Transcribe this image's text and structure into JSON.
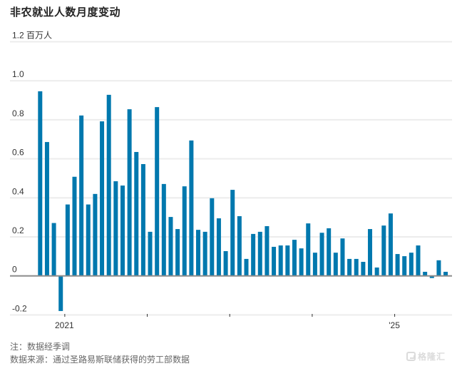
{
  "title": "非农就业人数月度变动",
  "footer": {
    "note": "注：数据经季调",
    "source": "数据来源：通过圣路易斯联储获得的劳工部数据"
  },
  "watermark": {
    "text": "格隆汇",
    "icon": "gelonghui-logo-icon"
  },
  "colors": {
    "bar": "#0078ae",
    "grid": "#ececec",
    "zero_line": "#8c8c8c",
    "text": "#333333"
  },
  "chart_data": {
    "type": "bar",
    "title": "非农就业人数月度变动",
    "ylabel": "百万人",
    "xlabel": "",
    "ylim": [
      -0.2,
      1.2
    ],
    "yticks": [
      {
        "value": 1.2,
        "label": "1.2 百万人"
      },
      {
        "value": 1.0,
        "label": "1.0"
      },
      {
        "value": 0.8,
        "label": "0.8"
      },
      {
        "value": 0.6,
        "label": "0.6"
      },
      {
        "value": 0.4,
        "label": "0.4"
      },
      {
        "value": 0.2,
        "label": "0.2"
      },
      {
        "value": 0,
        "label": "0"
      },
      {
        "value": -0.2,
        "label": "-0.2"
      }
    ],
    "xticks": [
      {
        "index": 4,
        "label": "2021"
      },
      {
        "index": 16,
        "label": ""
      },
      {
        "index": 28,
        "label": ""
      },
      {
        "index": 40,
        "label": ""
      },
      {
        "index": 52,
        "label": "'25"
      }
    ],
    "grid": true,
    "legend": null,
    "categories": [
      "2020-09",
      "2020-10",
      "2020-11",
      "2020-12",
      "2021-01",
      "2021-02",
      "2021-03",
      "2021-04",
      "2021-05",
      "2021-06",
      "2021-07",
      "2021-08",
      "2021-09",
      "2021-10",
      "2021-11",
      "2021-12",
      "2022-01",
      "2022-02",
      "2022-03",
      "2022-04",
      "2022-05",
      "2022-06",
      "2022-07",
      "2022-08",
      "2022-09",
      "2022-10",
      "2022-11",
      "2022-12",
      "2023-01",
      "2023-02",
      "2023-03",
      "2023-04",
      "2023-05",
      "2023-06",
      "2023-07",
      "2023-08",
      "2023-09",
      "2023-10",
      "2023-11",
      "2023-12",
      "2024-01",
      "2024-02",
      "2024-03",
      "2024-04",
      "2024-05",
      "2024-06",
      "2024-07",
      "2024-08",
      "2024-09",
      "2024-10",
      "2024-11",
      "2024-12",
      "2025-01",
      "2025-02",
      "2025-03",
      "2025-04",
      "2025-05",
      "2025-06",
      "2025-07",
      "2025-08"
    ],
    "values": [
      0.946,
      0.686,
      0.271,
      -0.18,
      0.366,
      0.508,
      0.822,
      0.366,
      0.42,
      0.792,
      0.928,
      0.485,
      0.463,
      0.854,
      0.635,
      0.573,
      0.226,
      0.865,
      0.471,
      0.302,
      0.24,
      0.459,
      0.694,
      0.236,
      0.226,
      0.398,
      0.295,
      0.127,
      0.441,
      0.306,
      0.087,
      0.215,
      0.226,
      0.255,
      0.149,
      0.156,
      0.156,
      0.185,
      0.141,
      0.269,
      0.119,
      0.221,
      0.244,
      0.119,
      0.192,
      0.087,
      0.087,
      0.072,
      0.24,
      0.043,
      0.258,
      0.32,
      0.112,
      0.101,
      0.119,
      0.156,
      0.021,
      -0.011,
      0.08,
      0.021
    ]
  }
}
